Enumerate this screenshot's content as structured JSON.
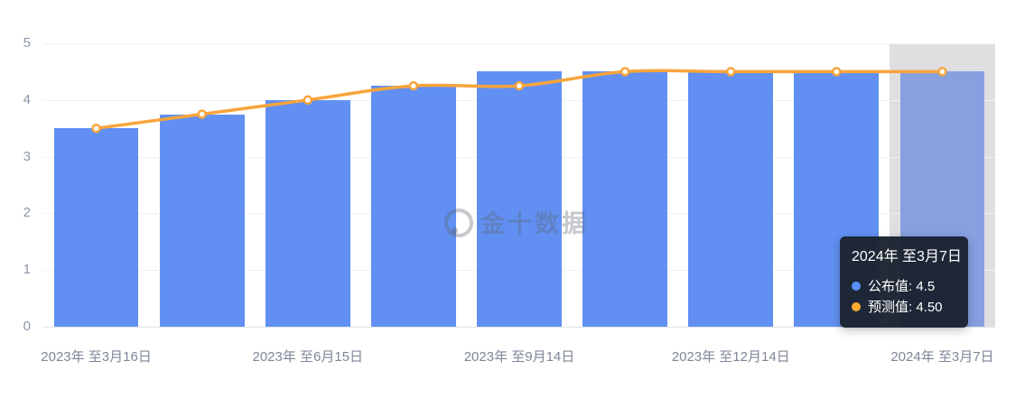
{
  "chart_data": {
    "type": "bar+line",
    "n_categories": 9,
    "ylim": [
      0,
      5
    ],
    "y_ticks": [
      5,
      4,
      3,
      2,
      1,
      0
    ],
    "y_tick_labels": [
      "5",
      "4",
      "3",
      "2",
      "1",
      "0"
    ],
    "x_tick_labels": [
      "2023年 至3月16日",
      "2023年 至6月15日",
      "2023年 至9月14日",
      "2023年 至12月14日",
      "2024年 至3月7日"
    ],
    "x_tick_positions": [
      0,
      2,
      4,
      6,
      8
    ],
    "series": [
      {
        "name": "公布值",
        "type": "bar",
        "color": "#6190f2",
        "values": [
          3.5,
          3.75,
          4.0,
          4.25,
          4.5,
          4.5,
          4.5,
          4.5,
          4.5
        ]
      },
      {
        "name": "预测值",
        "type": "line",
        "color": "#f8a43c",
        "marker": "circle-white-fill",
        "values": [
          3.5,
          3.75,
          4.0,
          4.25,
          4.25,
          4.5,
          4.5,
          4.5,
          4.5
        ]
      }
    ],
    "highlighted_index": 8,
    "highlight_bar_color": "#87a0e0",
    "highlight_band_color": "#dfdfe2",
    "grid": true,
    "legend_position": "none",
    "title": "",
    "xlabel": "",
    "ylabel": ""
  },
  "tooltip": {
    "title": "2024年 至3月7日",
    "rows": [
      {
        "color": "#5b8ff9",
        "text": "公布值: 4.5"
      },
      {
        "color": "#fbab30",
        "text": "预测值: 4.50"
      }
    ]
  },
  "watermark": {
    "text": "金十数据"
  }
}
